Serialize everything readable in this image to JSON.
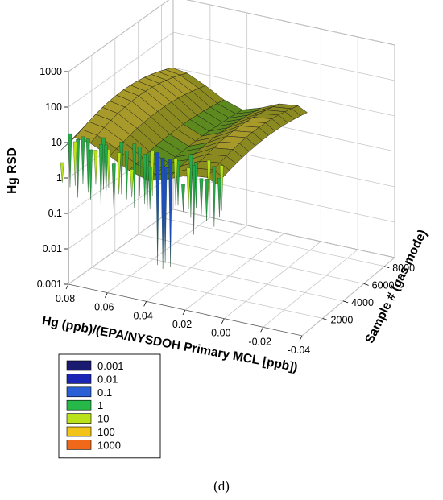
{
  "chart_data": {
    "type": "surface",
    "zlabel": "Hg RSD",
    "xlabel": "Hg (ppb)/(EPA/NYSDOH Primary MCL [ppb])",
    "ylabel": "Sample # (gas mode)",
    "z_scale": "log",
    "z_ticks": [
      "0.001",
      "0.01",
      "0.1",
      "1",
      "10",
      "100",
      "1000"
    ],
    "x_ticks": [
      "0.08",
      "0.06",
      "0.04",
      "0.02",
      "0.00",
      "-0.02",
      "-0.04"
    ],
    "y_ticks": [
      "2000",
      "4000",
      "6000",
      "8000"
    ],
    "xlim": [
      0.08,
      -0.04
    ],
    "ylim": [
      0,
      9000
    ],
    "zlim": [
      0.001,
      1000
    ],
    "grid": true,
    "legend": {
      "placement": "bottom-left",
      "entries": [
        {
          "label": "0.001",
          "color": "#1a1a70"
        },
        {
          "label": "0.01",
          "color": "#1a26b3"
        },
        {
          "label": "0.1",
          "color": "#2a5fd6"
        },
        {
          "label": "1",
          "color": "#27b84a"
        },
        {
          "label": "10",
          "color": "#b9e21a"
        },
        {
          "label": "100",
          "color": "#f2c41a"
        },
        {
          "label": "1000",
          "color": "#f0681a"
        }
      ]
    },
    "surface_profile": {
      "description_free_points": [],
      "x_values": [
        0.085,
        0.078,
        0.07,
        0.06,
        0.05,
        0.04,
        0.03,
        0.02,
        0.01,
        0.005
      ],
      "ridge_rsd": [
        8,
        30,
        25,
        12,
        5,
        3,
        5,
        10,
        12,
        8
      ],
      "min_rsd_at_x": 0.035,
      "deep_spike_rsd": 0.008
    }
  },
  "caption": "(d)"
}
